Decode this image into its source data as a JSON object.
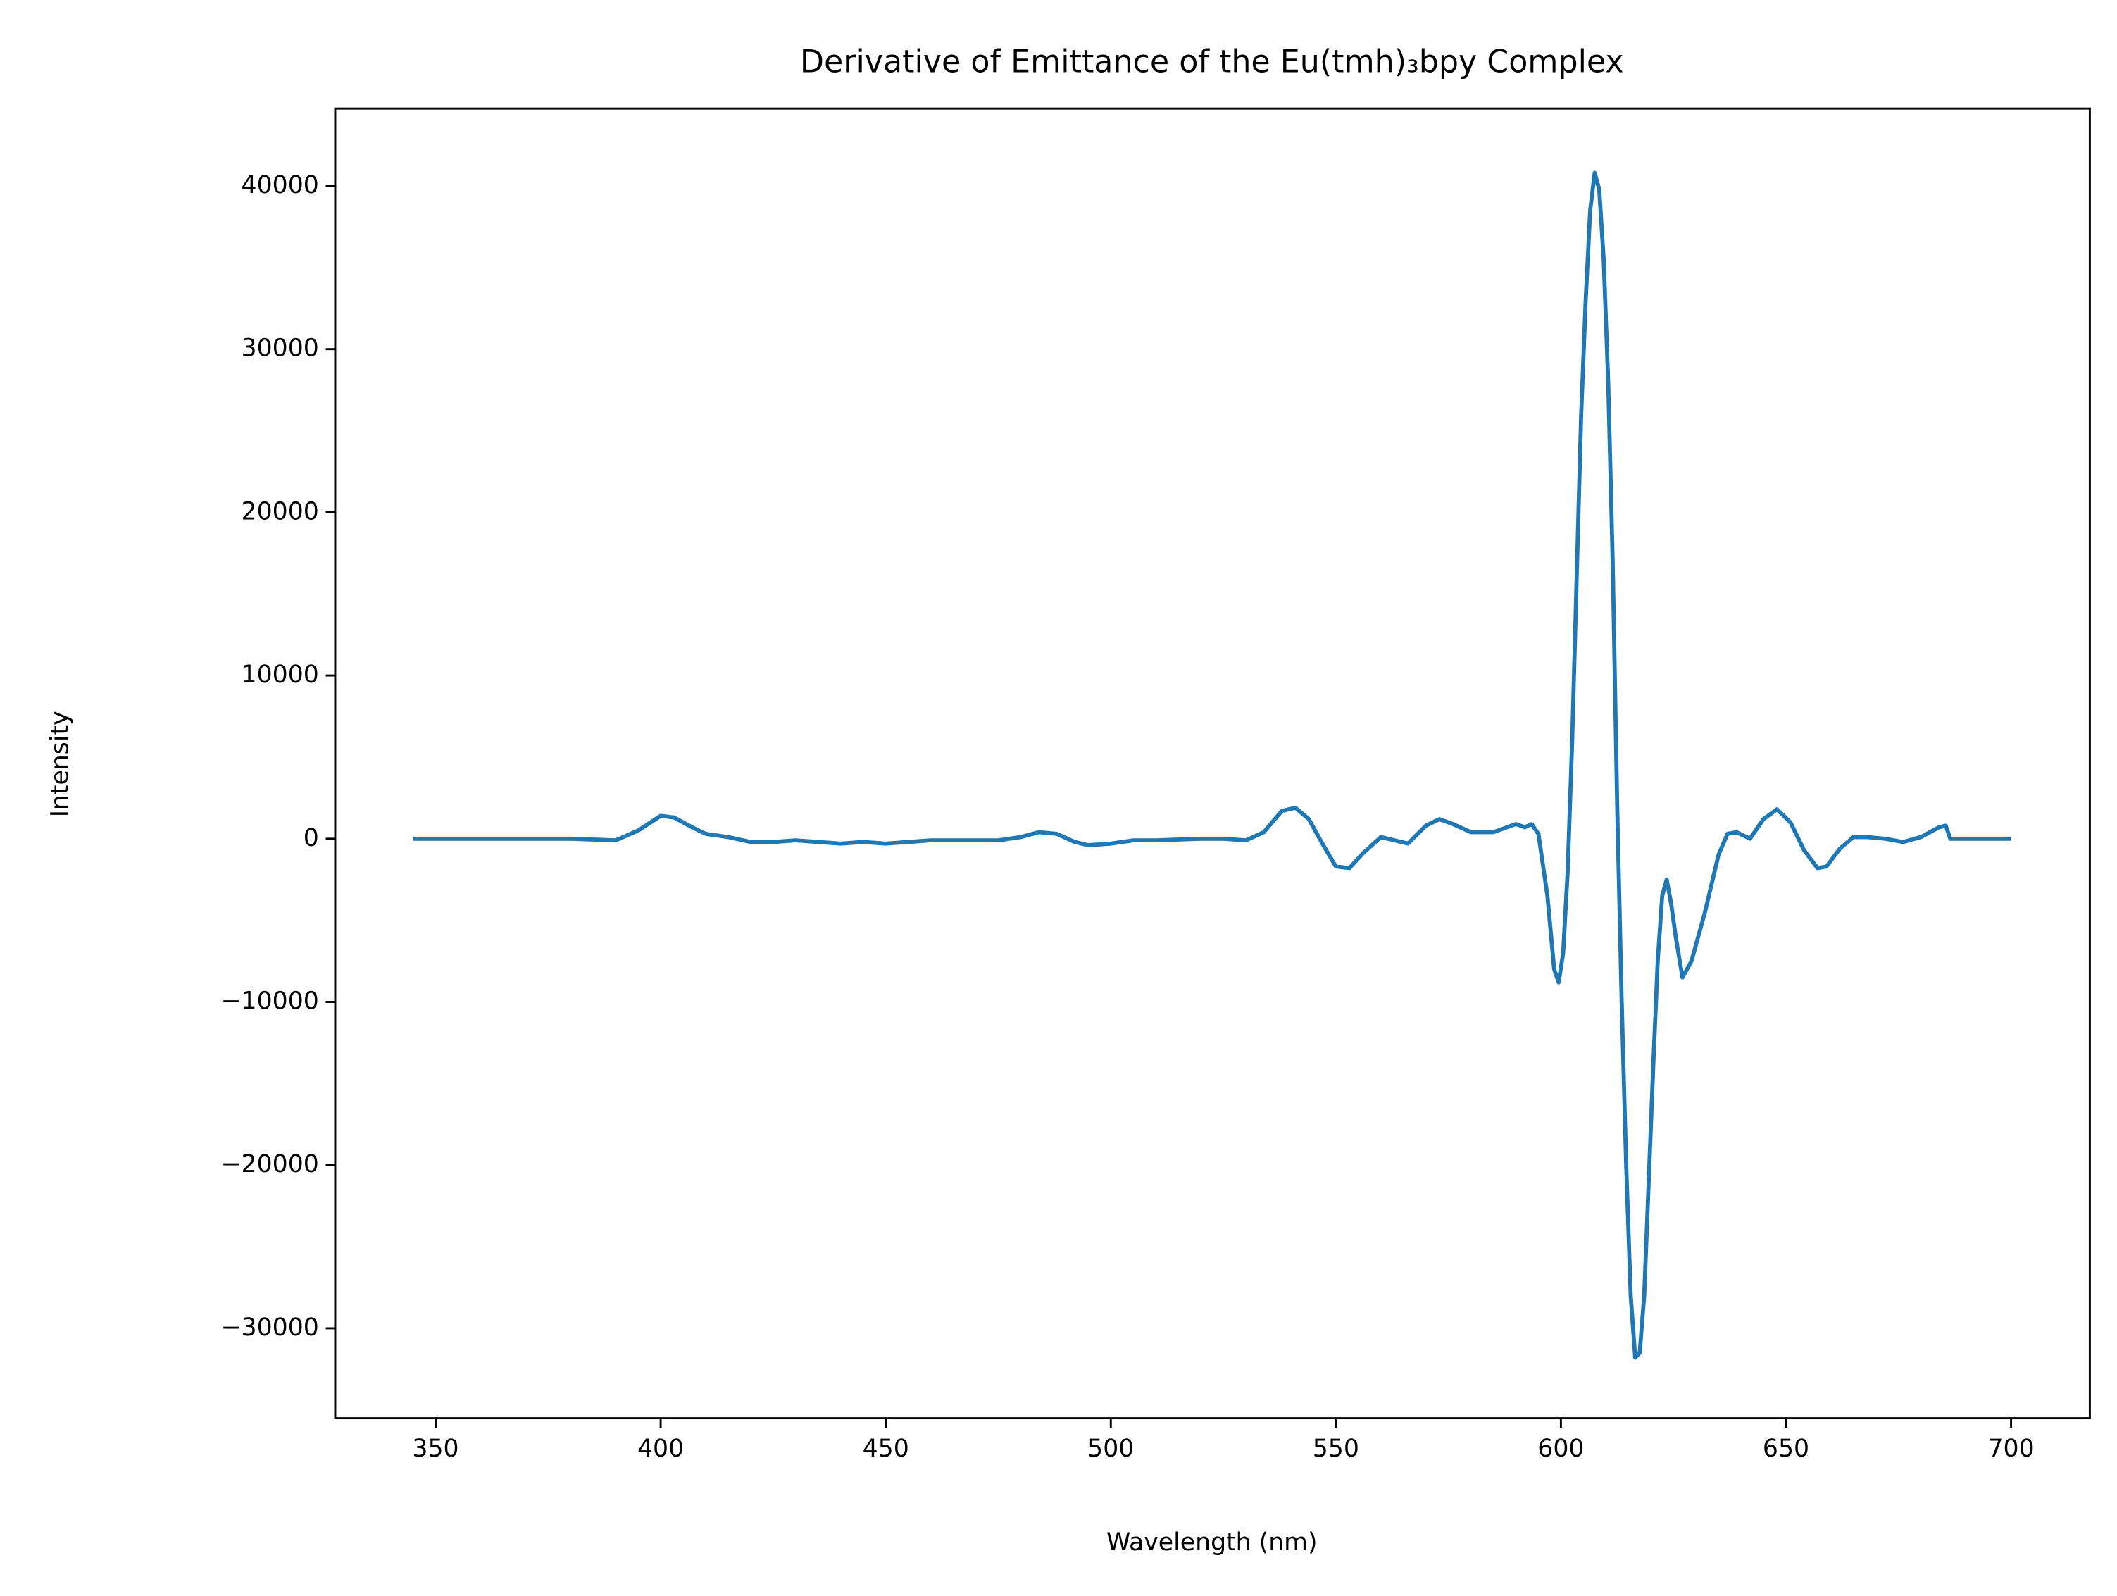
{
  "chart_data": {
    "type": "line",
    "title": "Derivative of Emittance of the Eu(tmh)₃bpy Complex",
    "x_label": "Wavelength (nm)",
    "y_label": "Intensity",
    "x": [
      345,
      360,
      380,
      390,
      395,
      400,
      403,
      407,
      410,
      415,
      420,
      425,
      430,
      435,
      440,
      445,
      450,
      455,
      460,
      470,
      475,
      480,
      484,
      488,
      492,
      495,
      500,
      505,
      510,
      520,
      525,
      530,
      534,
      538,
      541,
      544,
      547,
      550,
      553,
      556,
      560,
      563,
      566,
      570,
      573,
      576,
      580,
      585,
      590,
      592,
      593.5,
      595,
      597,
      598.5,
      599.5,
      600.5,
      601.5,
      602.5,
      603.5,
      604.5,
      605.5,
      606.5,
      607.5,
      608.5,
      609.5,
      610.5,
      611.5,
      612.5,
      613.5,
      614.5,
      615.5,
      616.5,
      617.5,
      618.5,
      619.5,
      620.5,
      621.5,
      622.5,
      623.5,
      624.5,
      625.5,
      627,
      629,
      632,
      635,
      637,
      639,
      642,
      645,
      648,
      651,
      654,
      657,
      659,
      662,
      665,
      668,
      672,
      676,
      680,
      684,
      685.5,
      686.5,
      690,
      700
    ],
    "series": [
      {
        "name": "Intensity",
        "color": "#1f77b4",
        "values": [
          0,
          0,
          0,
          -100,
          500,
          1400,
          1300,
          700,
          300,
          100,
          -200,
          -200,
          -100,
          -200,
          -300,
          -200,
          -300,
          -200,
          -100,
          -100,
          -100,
          100,
          400,
          300,
          -200,
          -400,
          -300,
          -100,
          -100,
          0,
          0,
          -100,
          400,
          1700,
          1900,
          1200,
          -300,
          -1700,
          -1800,
          -900,
          100,
          -100,
          -300,
          800,
          1200,
          900,
          400,
          400,
          900,
          700,
          900,
          300,
          -3500,
          -8000,
          -8800,
          -7000,
          -2000,
          6000,
          16000,
          26000,
          33000,
          38500,
          40800,
          39800,
          35500,
          28000,
          17000,
          2000,
          -10000,
          -20000,
          -28000,
          -31800,
          -31500,
          -28000,
          -21000,
          -14000,
          -7500,
          -3500,
          -2500,
          -4000,
          -6000,
          -8500,
          -7500,
          -4500,
          -1000,
          300,
          400,
          0,
          1200,
          1800,
          1000,
          -700,
          -1800,
          -1700,
          -600,
          100,
          100,
          0,
          -200,
          100,
          700,
          800,
          0,
          0,
          0
        ]
      }
    ],
    "xlim": [
      327.7,
      717.5
    ],
    "ylim": [
      -35510,
      44740
    ],
    "xticks": [
      350,
      400,
      450,
      500,
      550,
      600,
      650,
      700
    ],
    "yticks": [
      {
        "value": -30000,
        "label": "−30000"
      },
      {
        "value": -20000,
        "label": "−20000"
      },
      {
        "value": -10000,
        "label": "−10000"
      },
      0,
      10000,
      20000,
      30000,
      40000
    ],
    "grid": false
  }
}
